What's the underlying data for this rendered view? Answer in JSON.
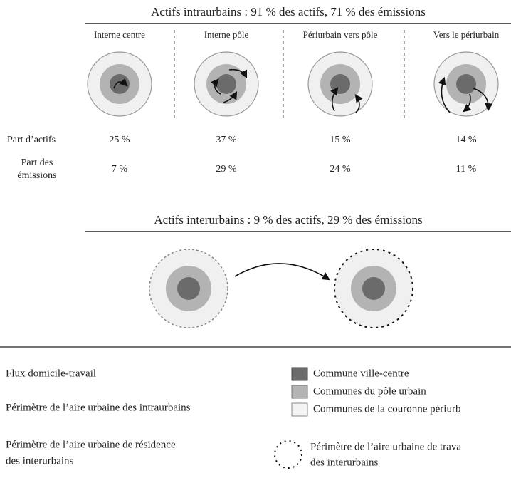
{
  "intraurbain": {
    "title": "Actifs intraurbains : 91 % des actifs, 71 % des émissions",
    "columns": [
      "Interne centre",
      "Interne pôle",
      "Périurbain vers pôle",
      "Vers le périurbain"
    ],
    "rows": [
      {
        "label": [
          "Part d’actifs"
        ],
        "values": [
          "25 %",
          "37 %",
          "15 %",
          "14 %"
        ]
      },
      {
        "label": [
          "Part des",
          "émissions"
        ],
        "values": [
          "7 %",
          "29 %",
          "24 %",
          "11 %"
        ]
      }
    ]
  },
  "interurbain": {
    "title": "Actifs interurbains : 9 % des actifs, 29 % des émissions"
  },
  "legend": {
    "left": [
      [
        "Flux domicile-travail"
      ],
      [
        "Périmètre de l’aire urbaine des intraurbains"
      ],
      [
        "Périmètre de l’aire urbaine de résidence",
        "des interurbains"
      ]
    ],
    "right": [
      [
        "Commune ville-centre"
      ],
      [
        "Communes du pôle urbain"
      ],
      [
        "Communes de la couronne périurb"
      ],
      [
        "Périmètre de l’aire urbaine de trava",
        "des interurbains"
      ]
    ]
  }
}
